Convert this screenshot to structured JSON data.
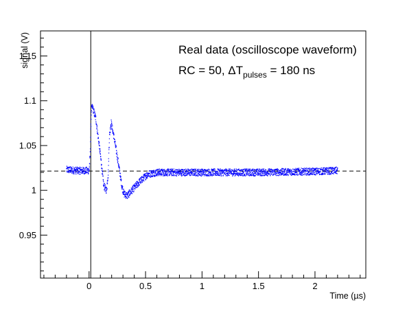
{
  "chart_data": {
    "type": "scatter",
    "title": "",
    "xlabel": "Time (µs)",
    "ylabel": "signal (V)",
    "xlim": [
      -0.43,
      2.45
    ],
    "ylim": [
      0.902,
      1.178
    ],
    "x_ticks": [
      0,
      0.5,
      1,
      1.5,
      2
    ],
    "x_tick_labels": [
      "0",
      "0.5",
      "1",
      "1.5",
      "2"
    ],
    "y_ticks": [
      0.95,
      1,
      1.05,
      1.1,
      1.15
    ],
    "y_tick_labels": [
      "0.95",
      "1",
      "1.05",
      "1.1",
      "1.15"
    ],
    "grid": false,
    "annotations": {
      "line1": "Real data (oscilloscope waveform)",
      "line2_prefix": "RC = 50, ",
      "line2_delta": "Δ",
      "line2_T": "T",
      "line2_sub": "pulses",
      "line2_suffix": " = 180 ns"
    },
    "reference_lines": [
      {
        "orientation": "horizontal",
        "style": "dashed",
        "y": 1.0215
      },
      {
        "orientation": "vertical",
        "style": "solid",
        "x": 0.015
      }
    ],
    "series": [
      {
        "color": "#0000ff",
        "x_range": [
          -0.2,
          2.2
        ],
        "points": [
          [
            -0.2,
            1.023
          ],
          [
            -0.1,
            1.022
          ],
          [
            0.0,
            1.022
          ],
          [
            0.01,
            1.04
          ],
          [
            0.02,
            1.09
          ],
          [
            0.03,
            1.093
          ],
          [
            0.06,
            1.08
          ],
          [
            0.1,
            1.04
          ],
          [
            0.13,
            1.005
          ],
          [
            0.155,
            1.0
          ],
          [
            0.17,
            1.02
          ],
          [
            0.18,
            1.06
          ],
          [
            0.195,
            1.076
          ],
          [
            0.22,
            1.06
          ],
          [
            0.26,
            1.03
          ],
          [
            0.29,
            1.005
          ],
          [
            0.31,
            0.996
          ],
          [
            0.34,
            0.994
          ],
          [
            0.38,
            1.0
          ],
          [
            0.45,
            1.01
          ],
          [
            0.52,
            1.018
          ],
          [
            0.6,
            1.02
          ],
          [
            1.0,
            1.02
          ],
          [
            1.5,
            1.02
          ],
          [
            2.0,
            1.021
          ],
          [
            2.2,
            1.022
          ]
        ],
        "noise_amplitude": 0.004
      }
    ]
  }
}
